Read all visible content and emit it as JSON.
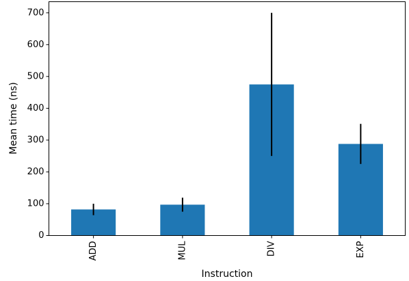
{
  "chart_data": {
    "type": "bar",
    "title": "",
    "xlabel": "Instruction",
    "ylabel": "Mean time (ns)",
    "categories": [
      "ADD",
      "MUL",
      "DIV",
      "EXP"
    ],
    "values": [
      82,
      97,
      475,
      288
    ],
    "errors": [
      18,
      22,
      225,
      63
    ],
    "ylim": [
      0,
      735
    ],
    "yticks": [
      0,
      100,
      200,
      300,
      400,
      500,
      600,
      700
    ],
    "x_tick_rotation": "vertical",
    "grid": false,
    "legend": "none",
    "colors": {
      "bar": "#1f77b4",
      "error_bar": "#000000"
    }
  }
}
